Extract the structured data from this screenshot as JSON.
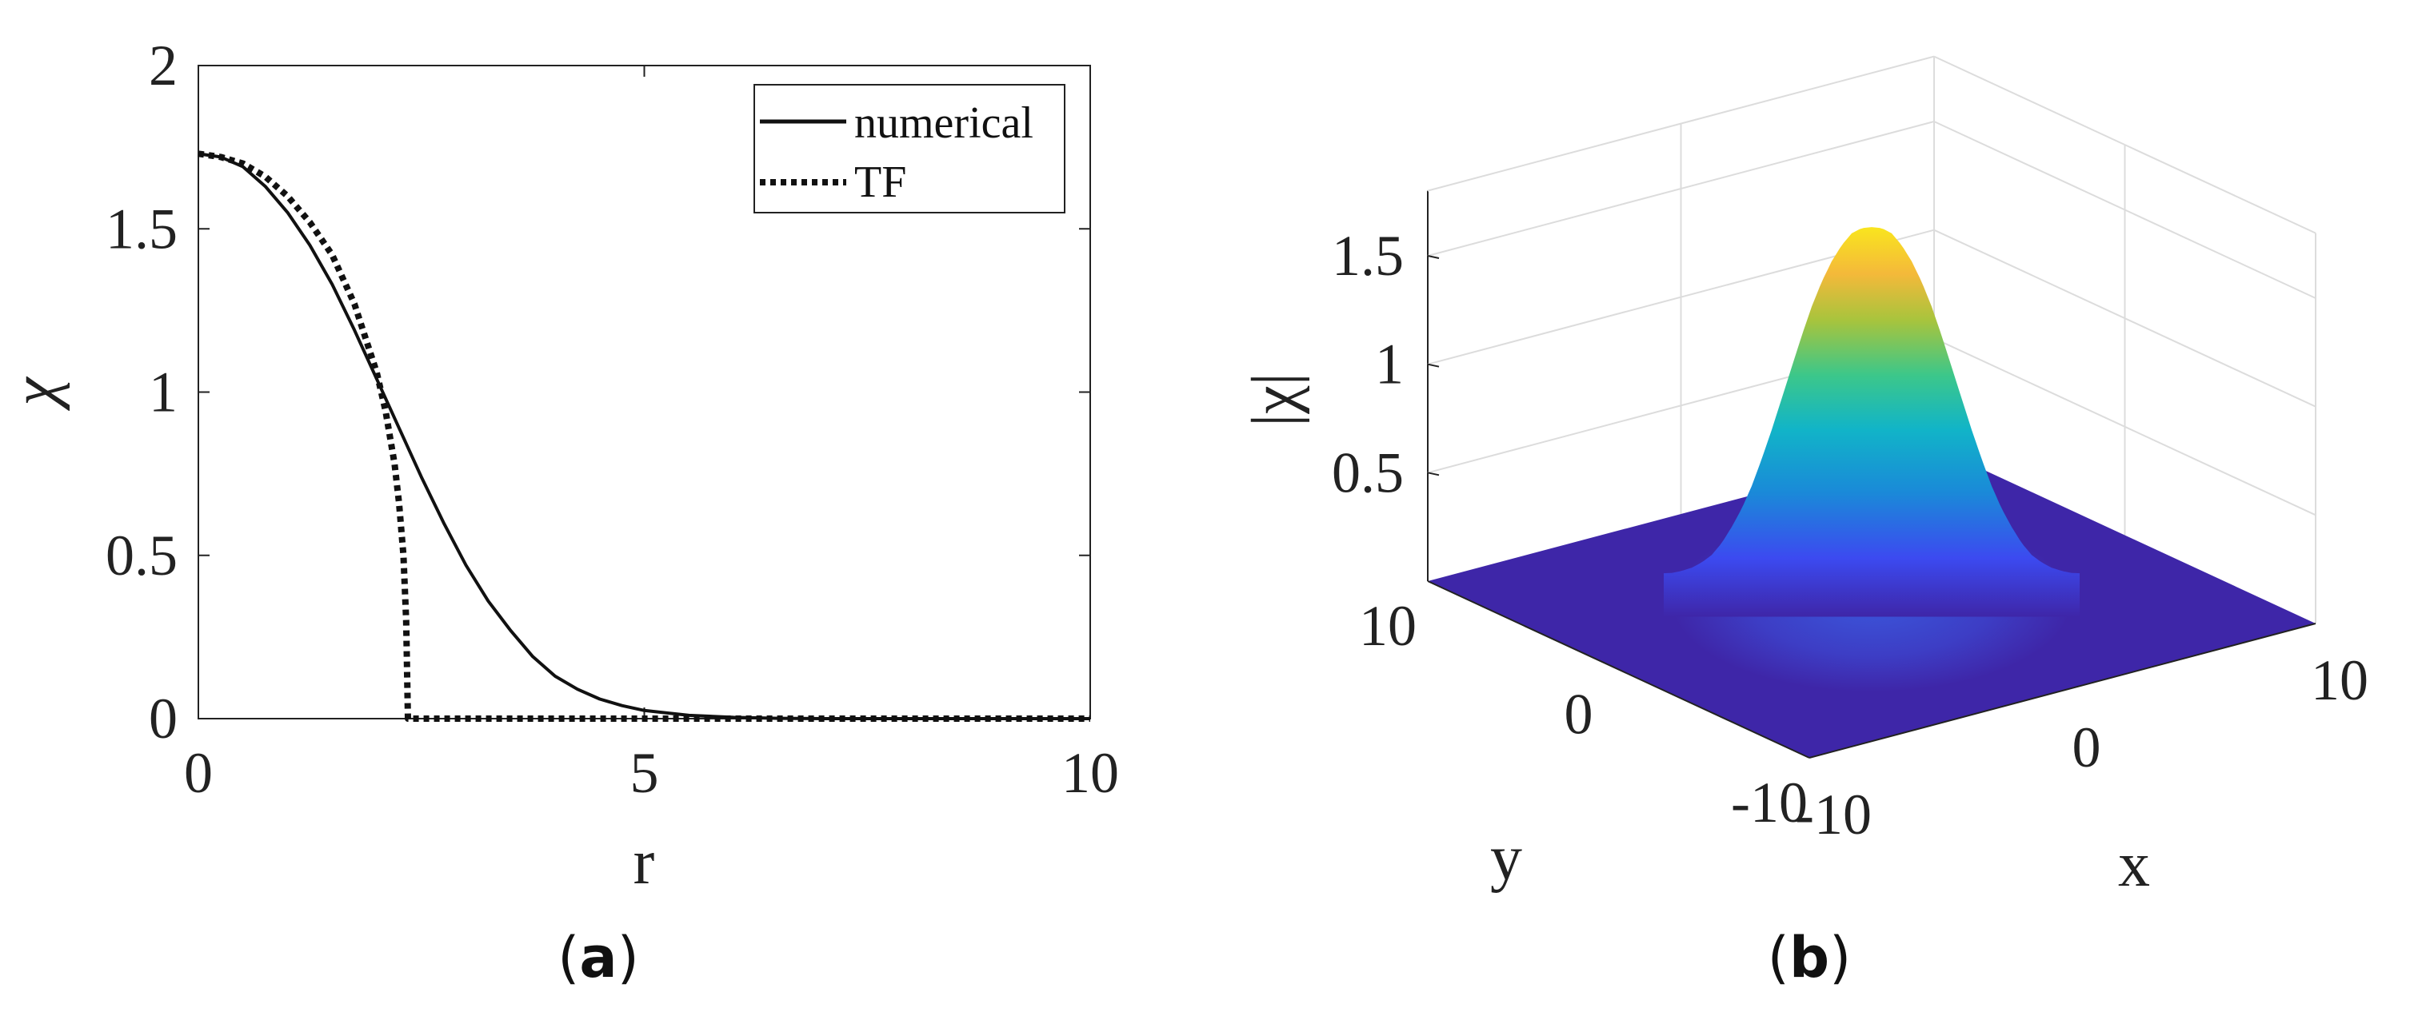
{
  "panels": {
    "a": {
      "label_open": "(",
      "label_letter": "a",
      "label_close": ")"
    },
    "b": {
      "label_open": "(",
      "label_letter": "b",
      "label_close": ")"
    }
  },
  "chart_data": [
    {
      "type": "line",
      "xlabel": "r",
      "ylabel": "χ",
      "xlim": [
        0,
        10
      ],
      "ylim": [
        0,
        2
      ],
      "xticks": [
        "0",
        "5",
        "10"
      ],
      "yticks": [
        "0",
        "0.5",
        "1",
        "1.5",
        "2"
      ],
      "grid": false,
      "legend_placement": "top-right",
      "series": [
        {
          "name": "numerical",
          "style": "solid",
          "x": [
            0,
            0.25,
            0.5,
            0.75,
            1.0,
            1.25,
            1.5,
            1.75,
            2.0,
            2.25,
            2.5,
            2.75,
            3.0,
            3.25,
            3.5,
            3.75,
            4.0,
            4.25,
            4.5,
            4.75,
            5.0,
            5.5,
            6.0,
            6.5,
            7.0,
            8.0,
            9.0,
            10.0
          ],
          "y": [
            1.73,
            1.72,
            1.69,
            1.63,
            1.55,
            1.45,
            1.33,
            1.19,
            1.04,
            0.89,
            0.74,
            0.6,
            0.47,
            0.36,
            0.27,
            0.19,
            0.13,
            0.09,
            0.06,
            0.04,
            0.025,
            0.01,
            0.004,
            0.001,
            0.0,
            0.0,
            0.0,
            0.0
          ]
        },
        {
          "name": "TF",
          "style": "dotted",
          "x": [
            0,
            0.25,
            0.5,
            0.75,
            1.0,
            1.25,
            1.5,
            1.75,
            2.0,
            2.1,
            2.2,
            2.25,
            2.3,
            2.33,
            2.35,
            2.4,
            3.0,
            5.0,
            7.0,
            10.0
          ],
          "y": [
            1.73,
            1.72,
            1.7,
            1.66,
            1.6,
            1.52,
            1.42,
            1.27,
            1.06,
            0.94,
            0.78,
            0.66,
            0.5,
            0.3,
            0.0,
            0.0,
            0.0,
            0.0,
            0.0,
            0.0
          ]
        }
      ]
    },
    {
      "type": "surface",
      "xlabel": "x",
      "ylabel": "y",
      "zlabel": "|χ|",
      "xlim": [
        -10,
        10
      ],
      "ylim": [
        -10,
        10
      ],
      "zlim": [
        0,
        1.8
      ],
      "xticks": [
        "-10",
        "0",
        "10"
      ],
      "yticks": [
        "-10",
        "0",
        "10"
      ],
      "zticks": [
        "0.5",
        "1",
        "1.5"
      ],
      "grid": true,
      "colormap": "parula",
      "colors": {
        "low": "#3e26a8",
        "mid": "#1ec8b4",
        "high": "#f9fb15"
      },
      "peak_value": 1.73,
      "profile_r": [
        0,
        0.25,
        0.5,
        0.75,
        1.0,
        1.25,
        1.5,
        1.75,
        2.0,
        2.25,
        2.5,
        2.75,
        3.0,
        3.25,
        3.5,
        3.75,
        4.0,
        4.25,
        4.5,
        4.75,
        5.0,
        5.5,
        6.0,
        6.5,
        7.0,
        8.0,
        9.0,
        10.0
      ],
      "profile_z": [
        1.73,
        1.72,
        1.69,
        1.63,
        1.55,
        1.45,
        1.33,
        1.19,
        1.04,
        0.89,
        0.74,
        0.6,
        0.47,
        0.36,
        0.27,
        0.19,
        0.13,
        0.09,
        0.06,
        0.04,
        0.025,
        0.01,
        0.004,
        0.001,
        0.0,
        0.0,
        0.0,
        0.0
      ]
    }
  ]
}
